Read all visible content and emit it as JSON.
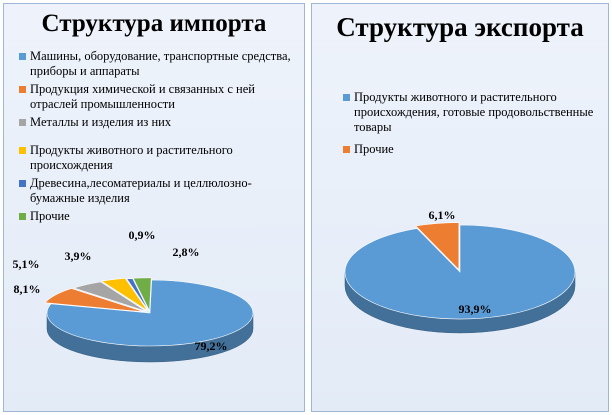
{
  "chart_data": [
    {
      "type": "pie",
      "title": "Структура импорта",
      "legend_placement": "top",
      "colors": [
        "#5b9bd5",
        "#ed7d31",
        "#a5a5a5",
        "#ffc000",
        "#4472c4",
        "#70ad47"
      ],
      "categories": [
        "Машины, оборудование, транспортные средства, приборы и аппараты",
        "Продукция химической и связанных с ней отраслей промышленности",
        "Металлы и изделия из них",
        "Продукты животного и растительного происхождения",
        "Древесина,лесоматериалы и целлюлозно-бумажные изделия",
        "Прочие"
      ],
      "values": [
        79.2,
        8.1,
        5.1,
        3.9,
        0.9,
        2.8
      ],
      "labels": [
        "79,2%",
        "8,1%",
        "5,1%",
        "3,9%",
        "0,9%",
        "2,8%"
      ]
    },
    {
      "type": "pie",
      "title": "Структура экспорта",
      "legend_placement": "top",
      "colors": [
        "#5b9bd5",
        "#ed7d31"
      ],
      "categories": [
        "Продукты животного и растительного происхождения, готовые продовольственные товары",
        "Прочие"
      ],
      "values": [
        93.9,
        6.1
      ],
      "labels": [
        "93,9%",
        "6,1%"
      ]
    }
  ]
}
